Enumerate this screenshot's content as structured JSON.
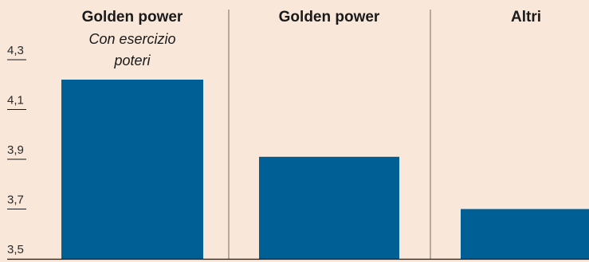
{
  "colors": {
    "background": "#f9e7d9",
    "bar": "#005f95",
    "divider": "#8a8079",
    "axis": "#1a1a1a"
  },
  "chart_data": {
    "type": "bar",
    "categories": [
      "Golden power",
      "Golden power",
      "Altri"
    ],
    "category_subtitles": [
      "Con esercizio poteri",
      "",
      ""
    ],
    "values": [
      4.22,
      3.91,
      3.7
    ],
    "ylim": [
      3.5,
      4.3
    ],
    "y_ticks": [
      {
        "value": 3.5,
        "label": "3,5"
      },
      {
        "value": 3.7,
        "label": "3,7"
      },
      {
        "value": 3.9,
        "label": "3,9"
      },
      {
        "value": 4.1,
        "label": "4,1"
      },
      {
        "value": 4.3,
        "label": "4,3"
      }
    ],
    "xlabel": "",
    "ylabel": "",
    "grid": false
  }
}
